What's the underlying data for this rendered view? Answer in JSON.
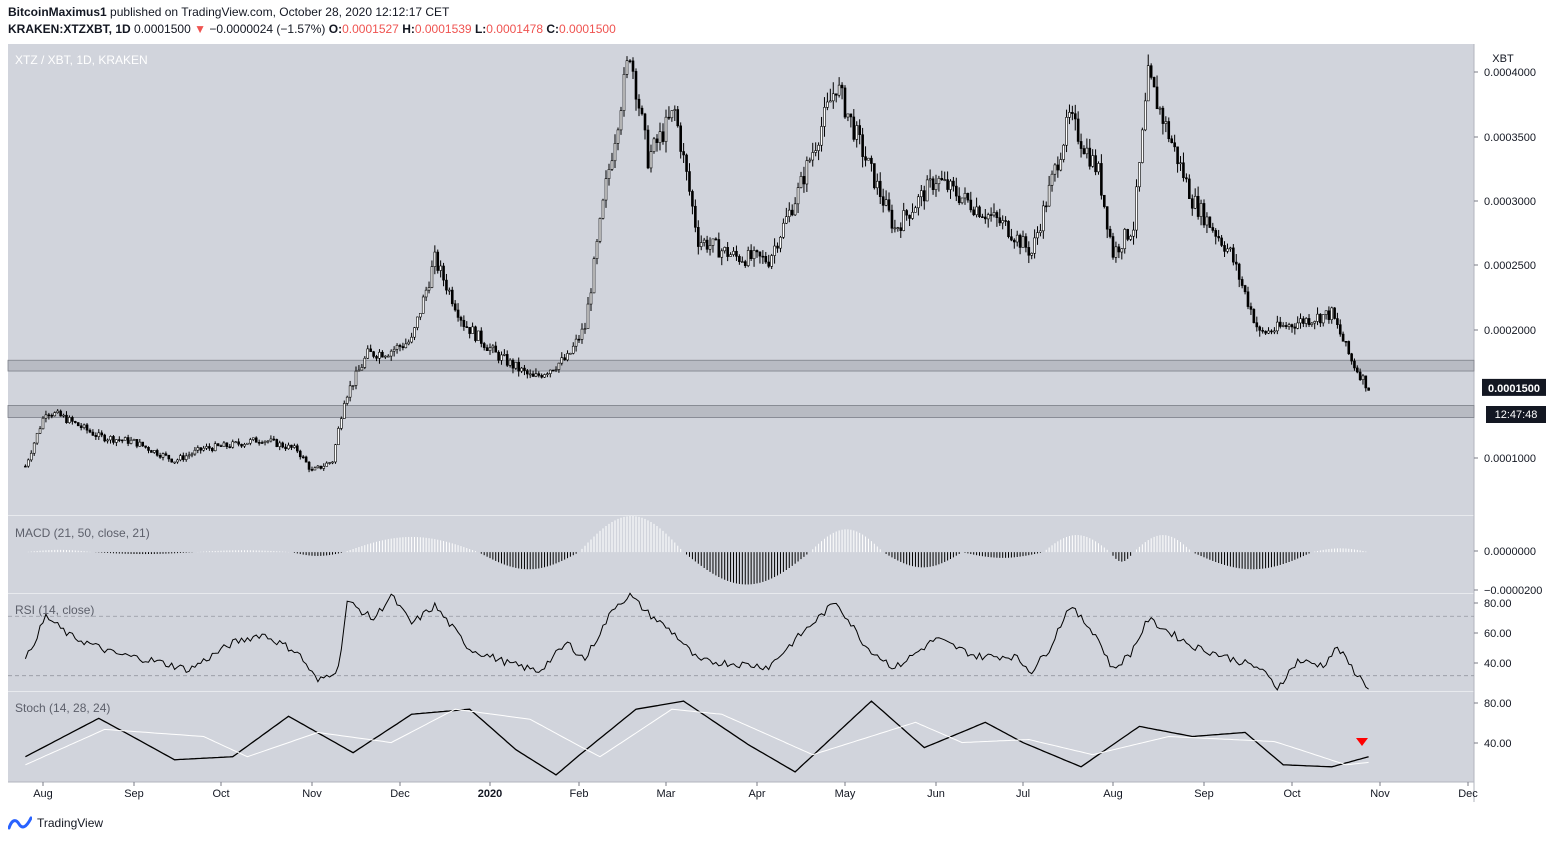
{
  "header": {
    "author": "BitcoinMaximus1",
    "published_text": "published on TradingView.com, October 28, 2020 12:12:17 CET",
    "symbol": "KRAKEN:XTZXBT, 1D",
    "last": "0.0001500",
    "change": "−0.0000024 (−1.57%)",
    "o_label": "O:",
    "o_value": "0.0001527",
    "h_label": "H:",
    "h_value": "0.0001539",
    "l_label": "L:",
    "l_value": "0.0001478",
    "c_label": "C:",
    "c_value": "0.0001500"
  },
  "footer": {
    "brand": "TradingView"
  },
  "colors": {
    "panel_bg": "#d1d4dc",
    "candle": "#000000",
    "price_tag_bg": "#131722",
    "signal_line": "#ffffff",
    "marker": "#ff0000",
    "grid_dashed": "#9598a1"
  },
  "chart_data": [
    {
      "type": "candlestick",
      "title": "XTZ / XBT, 1D, KRAKEN",
      "currency_label": "XBT",
      "x_tick_labels": [
        "Aug",
        "Sep",
        "Oct",
        "Nov",
        "Dec",
        "2020",
        "Feb",
        "Mar",
        "Apr",
        "May",
        "Jun",
        "Jul",
        "Aug",
        "Sep",
        "Oct",
        "Nov",
        "Dec"
      ],
      "y_tick_labels": [
        "0.0001000",
        "0.0002000",
        "0.0002500",
        "0.0003000",
        "0.0003500",
        "0.0004000"
      ],
      "ylim": [
        5.5e-05,
        0.000405
      ],
      "last_price_tag": "0.0001500",
      "countdown_tag": "12:47:48",
      "support_zones": [
        [
          0.0001625,
          0.0001705
        ],
        [
          0.000128,
          0.000137
        ]
      ],
      "close_series_approx": {
        "month_starts": [
          "Jul 2019",
          "Aug",
          "Sep",
          "Oct",
          "Nov",
          "Dec",
          "Jan 2020",
          "Feb",
          "Mar",
          "Apr",
          "May",
          "Jun",
          "Jul",
          "Aug",
          "Sep",
          "Oct",
          "Nov"
        ],
        "anchors": [
          [
            "Jul 26 2019",
            9.2e-05
          ],
          [
            "Aug 2 2019",
            0.000133
          ],
          [
            "Aug 8 2019",
            0.000128
          ],
          [
            "Aug 20 2019",
            0.000114
          ],
          [
            "Sep 1 2019",
            0.00011
          ],
          [
            "Sep 15 2019",
            9.6e-05
          ],
          [
            "Sep 25 2019",
            0.000105
          ],
          [
            "Oct 3 2019",
            0.000107
          ],
          [
            "Oct 15 2019",
            0.000112
          ],
          [
            "Oct 27 2019",
            0.000104
          ],
          [
            "Nov 1 2019",
            8.8e-05
          ],
          [
            "Nov 8 2019",
            9.6e-05
          ],
          [
            "Nov 12 2019",
            0.000142
          ],
          [
            "Nov 20 2019",
            0.000175
          ],
          [
            "Nov 27 2019",
            0.000177
          ],
          [
            "Dec 5 2019",
            0.000185
          ],
          [
            "Dec 13 2019",
            0.000245
          ],
          [
            "Dec 23 2019",
            0.000198
          ],
          [
            "Jan 3 2020",
            0.000175
          ],
          [
            "Jan 16 2020",
            0.000157
          ],
          [
            "Jan 28 2020",
            0.000172
          ],
          [
            "Feb 3 2020",
            0.000195
          ],
          [
            "Feb 10 2020",
            0.0003
          ],
          [
            "Feb 18 2020",
            0.0004
          ],
          [
            "Feb 24 2020",
            0.00032
          ],
          [
            "Mar 4 2020",
            0.000355
          ],
          [
            "Mar 12 2020",
            0.00026
          ],
          [
            "Mar 25 2020",
            0.000247
          ],
          [
            "Apr 5 2020",
            0.000245
          ],
          [
            "Apr 15 2020",
            0.000295
          ],
          [
            "Apr 28 2020",
            0.000375
          ],
          [
            "May 8 2020",
            0.00032
          ],
          [
            "May 18 2020",
            0.000268
          ],
          [
            "Jun 1 2020",
            0.000305
          ],
          [
            "Jun 12 2020",
            0.000288
          ],
          [
            "Jun 25 2020",
            0.00027
          ],
          [
            "Jul 4 2020",
            0.00025
          ],
          [
            "Jul 17 2020",
            0.00035
          ],
          [
            "Jul 27 2020",
            0.00031
          ],
          [
            "Aug 1 2020",
            0.00025
          ],
          [
            "Aug 8 2020",
            0.00027
          ],
          [
            "Aug 13 2020",
            0.00038
          ],
          [
            "Aug 28 2020",
            0.00029
          ],
          [
            "Sep 10 2020",
            0.00025
          ],
          [
            "Sep 20 2020",
            0.00019
          ],
          [
            "Oct 5 2020",
            0.0002
          ],
          [
            "Oct 15 2020",
            0.000205
          ],
          [
            "Oct 22 2020",
            0.00017
          ],
          [
            "Oct 28 2020",
            0.00015
          ]
        ]
      }
    },
    {
      "type": "histogram",
      "title": "MACD (21, 50, close, 21)",
      "y_tick_labels": [
        "0.0000000",
        "−0.0000200"
      ],
      "ylim": [
        -2.2e-05,
        1.9e-05
      ],
      "segments": [
        {
          "from": "Jul 26 2019",
          "to": "Aug 18 2019",
          "peak": 1.2e-06
        },
        {
          "from": "Aug 18 2019",
          "to": "Sep 22 2019",
          "peak": -1e-06
        },
        {
          "from": "Sep 22 2019",
          "to": "Oct 25 2019",
          "peak": 1e-06
        },
        {
          "from": "Oct 25 2019",
          "to": "Nov 12 2019",
          "peak": -2e-06
        },
        {
          "from": "Nov 12 2019",
          "to": "Dec 28 2019",
          "peak": 8e-06
        },
        {
          "from": "Dec 28 2019",
          "to": "Feb 1 2020",
          "peak": -9e-06
        },
        {
          "from": "Feb 1 2020",
          "to": "Mar 7 2020",
          "peak": 1.9e-05
        },
        {
          "from": "Mar 7 2020",
          "to": "Apr 19 2020",
          "peak": -1.7e-05
        },
        {
          "from": "Apr 19 2020",
          "to": "May 14 2020",
          "peak": 1.2e-05
        },
        {
          "from": "May 14 2020",
          "to": "Jun 10 2020",
          "peak": -8e-06
        },
        {
          "from": "Jun 10 2020",
          "to": "Jul 8 2020",
          "peak": -3e-06
        },
        {
          "from": "Jul 8 2020",
          "to": "Jul 31 2020",
          "peak": 9e-06
        },
        {
          "from": "Jul 31 2020",
          "to": "Aug 8 2020",
          "peak": -5e-06
        },
        {
          "from": "Aug 8 2020",
          "to": "Aug 28 2020",
          "peak": 9e-06
        },
        {
          "from": "Aug 28 2020",
          "to": "Oct 8 2020",
          "peak": -9e-06
        },
        {
          "from": "Oct 8 2020",
          "to": "Oct 28 2020",
          "peak": 2e-06
        }
      ]
    },
    {
      "type": "line",
      "title": "RSI (14, close)",
      "y_tick_labels": [
        "80.00",
        "60.00",
        "40.00"
      ],
      "ylim": [
        19,
        85
      ],
      "bands": [
        70,
        30
      ],
      "anchors": [
        [
          "Jul 26 2019",
          40
        ],
        [
          "Aug 2 2019",
          70
        ],
        [
          "Aug 10 2019",
          57
        ],
        [
          "Aug 25 2019",
          45
        ],
        [
          "Sep 8 2019",
          40
        ],
        [
          "Sep 20 2019",
          34
        ],
        [
          "Oct 5 2019",
          52
        ],
        [
          "Oct 15 2019",
          58
        ],
        [
          "Oct 27 2019",
          46
        ],
        [
          "Nov 3 2019",
          26
        ],
        [
          "Nov 10 2019",
          35
        ],
        [
          "Nov 13 2019",
          80
        ],
        [
          "Nov 22 2019",
          68
        ],
        [
          "Nov 28 2019",
          84
        ],
        [
          "Dec 5 2019",
          65
        ],
        [
          "Dec 13 2019",
          77
        ],
        [
          "Dec 25 2019",
          48
        ],
        [
          "Jan 8 2020",
          38
        ],
        [
          "Jan 18 2020",
          33
        ],
        [
          "Jan 28 2020",
          52
        ],
        [
          "Feb 3 2020",
          41
        ],
        [
          "Feb 13 2020",
          77
        ],
        [
          "Feb 18 2020",
          84
        ],
        [
          "Feb 24 2020",
          72
        ],
        [
          "Mar 4 2020",
          58
        ],
        [
          "Mar 12 2020",
          40
        ],
        [
          "Mar 25 2020",
          38
        ],
        [
          "Apr 5 2020",
          36
        ],
        [
          "Apr 15 2020",
          56
        ],
        [
          "Apr 28 2020",
          80
        ],
        [
          "May 8 2020",
          50
        ],
        [
          "May 18 2020",
          35
        ],
        [
          "Jun 1 2020",
          55
        ],
        [
          "Jun 15 2020",
          43
        ],
        [
          "Jun 28 2020",
          43
        ],
        [
          "Jul 4 2020",
          33
        ],
        [
          "Jul 10 2020",
          48
        ],
        [
          "Jul 17 2020",
          77
        ],
        [
          "Jul 26 2020",
          58
        ],
        [
          "Aug 1 2020",
          34
        ],
        [
          "Aug 7 2020",
          45
        ],
        [
          "Aug 13 2020",
          68
        ],
        [
          "Aug 28 2020",
          50
        ],
        [
          "Sep 8 2020",
          43
        ],
        [
          "Sep 20 2020",
          35
        ],
        [
          "Sep 26 2020",
          22
        ],
        [
          "Oct 3 2020",
          40
        ],
        [
          "Oct 12 2020",
          37
        ],
        [
          "Oct 17 2020",
          49
        ],
        [
          "Oct 23 2020",
          33
        ],
        [
          "Oct 28 2020",
          22
        ]
      ]
    },
    {
      "type": "line",
      "title": "Stoch (14, 28, 24)",
      "y_tick_labels": [
        "80.00",
        "40.00"
      ],
      "ylim": [
        3,
        92
      ],
      "series": [
        {
          "role": "k",
          "anchors": [
            [
              "Jul 26 2019",
              28
            ],
            [
              "Aug 20 2019",
              66
            ],
            [
              "Sep 15 2019",
              25
            ],
            [
              "Oct 5 2019",
              28
            ],
            [
              "Oct 24 2019",
              68
            ],
            [
              "Nov 15 2019",
              32
            ],
            [
              "Dec 5 2019",
              70
            ],
            [
              "Dec 25 2019",
              75
            ],
            [
              "Jan 10 2020",
              35
            ],
            [
              "Jan 24 2020",
              10
            ],
            [
              "Feb 20 2020",
              75
            ],
            [
              "Mar 7 2020",
              83
            ],
            [
              "Mar 29 2020",
              40
            ],
            [
              "Apr 14 2020",
              13
            ],
            [
              "May 10 2020",
              83
            ],
            [
              "May 28 2020",
              37
            ],
            [
              "Jun 18 2020",
              62
            ],
            [
              "Jul 1 2020",
              42
            ],
            [
              "Jul 21 2020",
              18
            ],
            [
              "Aug 10 2020",
              58
            ],
            [
              "Aug 28 2020",
              48
            ],
            [
              "Sep 15 2020",
              52
            ],
            [
              "Sep 28 2020",
              20
            ],
            [
              "Oct 15 2020",
              18
            ],
            [
              "Oct 28 2020",
              28
            ],
            [
              "Nov 7 2020",
              34
            ],
            [
              "Nov 23 2020",
              20
            ]
          ]
        },
        {
          "role": "signal",
          "anchors": [
            [
              "Jul 26 2019",
              20
            ],
            [
              "Aug 22 2019",
              55
            ],
            [
              "Sep 25 2019",
              48
            ],
            [
              "Oct 10 2019",
              28
            ],
            [
              "Nov 3 2019",
              52
            ],
            [
              "Nov 28 2019",
              42
            ],
            [
              "Dec 20 2019",
              75
            ],
            [
              "Jan 15 2020",
              65
            ],
            [
              "Feb 8 2020",
              28
            ],
            [
              "Mar 3 2020",
              75
            ],
            [
              "Mar 20 2020",
              70
            ],
            [
              "Apr 20 2020",
              30
            ],
            [
              "May 25 2020",
              62
            ],
            [
              "Jun 10 2020",
              42
            ],
            [
              "Jul 3 2020",
              45
            ],
            [
              "Jul 25 2020",
              30
            ],
            [
              "Aug 20 2020",
              48
            ],
            [
              "Sep 25 2020",
              43
            ],
            [
              "Oct 20 2020",
              20
            ],
            [
              "Nov 23 2020",
              30
            ]
          ]
        }
      ],
      "marker": "sell-triangle"
    }
  ]
}
